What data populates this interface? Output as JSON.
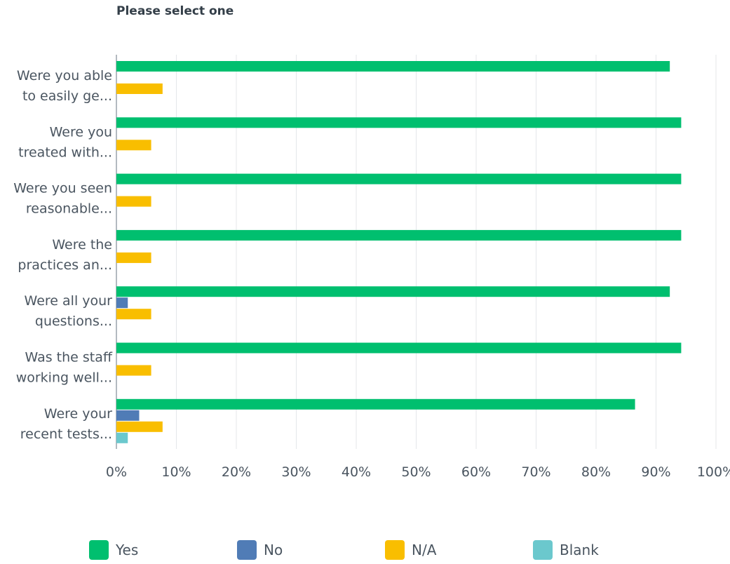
{
  "chart_data": {
    "type": "bar",
    "orientation": "horizontal",
    "title": "Please select one",
    "categories": [
      [
        "Were you able",
        "to easily ge..."
      ],
      [
        "Were you",
        "treated with..."
      ],
      [
        "Were you seen",
        "reasonable..."
      ],
      [
        "Were the",
        "practices an..."
      ],
      [
        "Were all your",
        "questions..."
      ],
      [
        "Was the staff",
        "working well..."
      ],
      [
        "Were your",
        "recent tests..."
      ]
    ],
    "series": [
      {
        "name": "Yes",
        "color": "#00bf6f",
        "values": [
          92.3,
          94.2,
          94.2,
          94.2,
          92.3,
          94.2,
          86.5
        ]
      },
      {
        "name": "No",
        "color": "#507cb6",
        "values": [
          0,
          0,
          0,
          0,
          1.9,
          0,
          3.8
        ]
      },
      {
        "name": "N/A",
        "color": "#f9be00",
        "values": [
          7.7,
          5.8,
          5.8,
          5.8,
          5.8,
          5.8,
          7.7
        ]
      },
      {
        "name": "Blank",
        "color": "#6bc8cd",
        "values": [
          0,
          0,
          0,
          0,
          0,
          0,
          1.9
        ]
      }
    ],
    "xticks": [
      "0%",
      "10%",
      "20%",
      "30%",
      "40%",
      "50%",
      "60%",
      "70%",
      "80%",
      "90%",
      "100%"
    ],
    "xlim": [
      0,
      100
    ],
    "grid": true,
    "legend_position": "bottom"
  }
}
